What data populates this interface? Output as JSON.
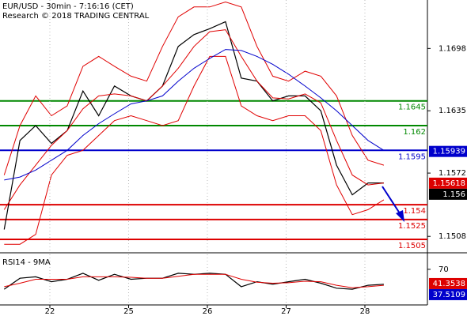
{
  "chart_data": [
    {
      "type": "line",
      "title": "EUR/USD - 30min - 7:16:16 (CET)",
      "subtitle": "Research © 2018 TRADING CENTRAL",
      "x": [
        -0.58,
        -0.38,
        -0.18,
        0.02,
        0.22,
        0.42,
        0.62,
        0.82,
        1.03,
        1.23,
        1.43,
        1.63,
        1.83,
        2.03,
        2.23,
        2.43,
        2.63,
        2.83,
        3.03,
        3.24,
        3.44,
        3.64,
        3.84,
        4.04,
        4.24
      ],
      "xlim": [
        -0.633,
        4.794
      ],
      "ylim": [
        1.1493,
        1.1747
      ],
      "yticks": [
        1.1698,
        1.1635,
        1.1572,
        1.1508
      ],
      "series": [
        {
          "color": "#000000",
          "values": [
            1.1515,
            1.1605,
            1.162,
            1.1602,
            1.1615,
            1.1655,
            1.163,
            1.166,
            1.165,
            1.1645,
            1.166,
            1.17,
            1.1712,
            1.1718,
            1.1725,
            1.1668,
            1.1665,
            1.1645,
            1.165,
            1.165,
            1.1635,
            1.158,
            1.155,
            1.1562,
            1.1562
          ]
        },
        {
          "color": "#e00000",
          "values": [
            1.157,
            1.162,
            1.165,
            1.163,
            1.164,
            1.168,
            1.169,
            1.168,
            1.167,
            1.1665,
            1.17,
            1.173,
            1.174,
            1.174,
            1.1745,
            1.174,
            1.17,
            1.167,
            1.1665,
            1.1675,
            1.167,
            1.165,
            1.161,
            1.1585,
            1.158
          ]
        },
        {
          "color": "#e00000",
          "values": [
            1.15,
            1.15,
            1.151,
            1.157,
            1.159,
            1.1595,
            1.161,
            1.1625,
            1.163,
            1.1625,
            1.162,
            1.1625,
            1.166,
            1.169,
            1.169,
            1.164,
            1.163,
            1.1625,
            1.163,
            1.163,
            1.1615,
            1.156,
            1.153,
            1.1535,
            1.1545
          ]
        },
        {
          "color": "#e00000",
          "values": [
            1.1535,
            1.156,
            1.158,
            1.16,
            1.1615,
            1.1637,
            1.165,
            1.1652,
            1.165,
            1.1645,
            1.166,
            1.1678,
            1.17,
            1.1715,
            1.1717,
            1.169,
            1.1665,
            1.1648,
            1.1647,
            1.1652,
            1.1643,
            1.1605,
            1.157,
            1.156,
            1.1562
          ]
        },
        {
          "color": "#0000cc",
          "values": [
            1.1565,
            1.1568,
            1.1575,
            1.1585,
            1.1595,
            1.161,
            1.1622,
            1.1632,
            1.1642,
            1.1645,
            1.165,
            1.1665,
            1.1678,
            1.1688,
            1.1697,
            1.1696,
            1.169,
            1.1682,
            1.1672,
            1.166,
            1.1648,
            1.1635,
            1.162,
            1.1605,
            1.1595
          ]
        }
      ],
      "levels": [
        {
          "value": 1.1645,
          "color": "#008800"
        },
        {
          "value": 1.162,
          "color": "#008800"
        },
        {
          "value": 1.1595,
          "color": "#0000cc"
        },
        {
          "value": 1.154,
          "color": "#dd0000"
        },
        {
          "value": 1.1525,
          "color": "#dd0000"
        },
        {
          "value": 1.1505,
          "color": "#dd0000"
        }
      ],
      "price_tags": [
        {
          "value": 1.15939,
          "color": "#0000cc"
        },
        {
          "value": 1.15618,
          "color": "#dd0000"
        },
        {
          "value": 1.156,
          "color": "#000000"
        }
      ]
    },
    {
      "type": "line",
      "title": "RSI14 - 9MA",
      "x": [
        -0.58,
        -0.38,
        -0.18,
        0.02,
        0.22,
        0.42,
        0.62,
        0.82,
        1.03,
        1.23,
        1.43,
        1.63,
        1.83,
        2.03,
        2.23,
        2.43,
        2.63,
        2.83,
        3.03,
        3.24,
        3.44,
        3.64,
        3.84,
        4.04,
        4.24
      ],
      "xlim": [
        -0.633,
        4.794
      ],
      "xticks": [
        {
          "value": 0,
          "label": "22"
        },
        {
          "value": 1,
          "label": "25"
        },
        {
          "value": 2,
          "label": "26"
        },
        {
          "value": 3,
          "label": "27"
        },
        {
          "value": 4,
          "label": "28"
        }
      ],
      "ylim": [
        0,
        100
      ],
      "yticks": [
        70
      ],
      "series": [
        {
          "color": "#000000",
          "values": [
            30,
            52,
            55,
            45,
            50,
            62,
            48,
            60,
            50,
            52,
            52,
            62,
            60,
            62,
            60,
            35,
            45,
            40,
            45,
            50,
            42,
            32,
            30,
            38,
            40
          ]
        },
        {
          "color": "#e00000",
          "values": [
            35,
            42,
            50,
            50,
            50,
            55,
            55,
            55,
            54,
            52,
            52,
            56,
            60,
            60,
            60,
            50,
            44,
            42,
            43,
            46,
            45,
            38,
            33,
            35,
            38
          ]
        }
      ],
      "price_tags": [
        {
          "value": 41.3538,
          "color": "#dd0000"
        },
        {
          "value": 37.5109,
          "color": "#0000cc"
        }
      ]
    }
  ]
}
